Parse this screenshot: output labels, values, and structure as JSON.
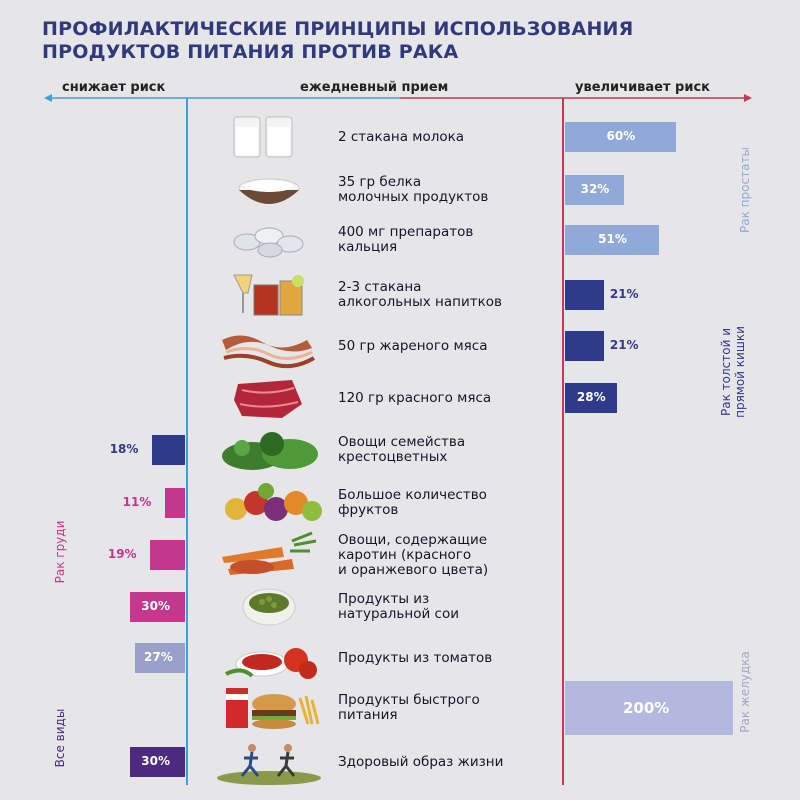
{
  "title": "ПРОФИЛАКТИЧЕСКИЕ ПРИНЦИПЫ ИСПОЛЬЗОВАНИЯ ПРОДУКТОВ ПИТАНИЯ ПРОТИВ РАКА",
  "headers": {
    "left": "снижает риск",
    "center": "ежедневный прием",
    "right": "увеличивает риск"
  },
  "colors": {
    "title": "#2e3a7c",
    "prostate": "#8fa9d8",
    "colon": "#2e3a8a",
    "breast": "#c5368f",
    "breast_light": "#9aa0cc",
    "stomach": "#b4b8de",
    "all": "#4b2a80",
    "left_axis": "#3ba0d8",
    "right_axis": "#c23a5a"
  },
  "chart_data": {
    "type": "bar",
    "title": "ПРОФИЛАКТИЧЕСКИЕ ПРИНЦИПЫ ИСПОЛЬЗОВАНИЯ ПРОДУКТОВ ПИТАНИЯ ПРОТИВ РАКА",
    "xlabel_left": "снижает риск",
    "xlabel_center": "ежедневный прием",
    "xlabel_right": "увеличивает риск",
    "value_unit": "%",
    "rows": [
      {
        "item": "2 стакана молока",
        "direction": "increase",
        "value": 60,
        "label": "60%",
        "group": "Рак простаты",
        "color": "#8fa9d8",
        "icon": "milk-glasses-icon"
      },
      {
        "item": "35 гр белка\nмолочных продуктов",
        "direction": "increase",
        "value": 32,
        "label": "32%",
        "group": "Рак простаты",
        "color": "#8fa9d8",
        "icon": "cottage-cheese-icon"
      },
      {
        "item": "400 мг препаратов\nкальция",
        "direction": "increase",
        "value": 51,
        "label": "51%",
        "group": "Рак простаты",
        "color": "#8fa9d8",
        "icon": "pills-icon"
      },
      {
        "item": "2-3 стакана\nалкогольных напитков",
        "direction": "increase",
        "value": 21,
        "label": "21%",
        "group": "Рак толстой и прямой кишки",
        "color": "#2e3a8a",
        "icon": "alcohol-glasses-icon"
      },
      {
        "item": "50 гр жареного мяса",
        "direction": "increase",
        "value": 21,
        "label": "21%",
        "group": "Рак толстой и прямой кишки",
        "color": "#2e3a8a",
        "icon": "bacon-icon"
      },
      {
        "item": "120 гр красного мяса",
        "direction": "increase",
        "value": 28,
        "label": "28%",
        "group": "Рак толстой и прямой кишки",
        "color": "#2e3a8a",
        "icon": "red-meat-icon"
      },
      {
        "item": "Овощи семейства\nкрестоцветных",
        "direction": "decrease",
        "value": 18,
        "label": "18%",
        "group": "Рак толстой и прямой кишки",
        "color": "#2e3a8a",
        "icon": "cabbage-icon"
      },
      {
        "item": "Большое количество\nфруктов",
        "direction": "decrease",
        "value": 11,
        "label": "11%",
        "group": "Рак груди",
        "color": "#c5368f",
        "icon": "fruits-icon"
      },
      {
        "item": "Овощи, содержащие\nкаротин (красного\nи оранжевого цвета)",
        "direction": "decrease",
        "value": 19,
        "label": "19%",
        "group": "Рак груди",
        "color": "#c5368f",
        "icon": "carrots-icon"
      },
      {
        "item": "Продукты из\nнатуральной сои",
        "direction": "decrease",
        "value": 30,
        "label": "30%",
        "group": "Рак груди",
        "color": "#c5368f",
        "icon": "soybeans-icon"
      },
      {
        "item": "Продукты из томатов",
        "direction": "decrease",
        "value": 27,
        "label": "27%",
        "group": "Рак груди",
        "color": "#9aa0cc",
        "icon": "tomatoes-icon"
      },
      {
        "item": "Продукты быстрого\nпитания",
        "direction": "increase",
        "value": 200,
        "label": "200%",
        "group": "Рак желудка",
        "color": "#b4b8de",
        "icon": "fast-food-icon"
      },
      {
        "item": "Здоровый образ жизни",
        "direction": "decrease",
        "value": 30,
        "label": "30%",
        "group": "Все виды",
        "color": "#4b2a80",
        "icon": "running-people-icon"
      }
    ],
    "groups": [
      {
        "name": "Рак простаты",
        "side": "right"
      },
      {
        "name": "Рак толстой и\nпрямой кишки",
        "side": "right"
      },
      {
        "name": "Рак желудка",
        "side": "right"
      },
      {
        "name": "Рак груди",
        "side": "left"
      },
      {
        "name": "Все виды",
        "side": "left"
      }
    ]
  }
}
